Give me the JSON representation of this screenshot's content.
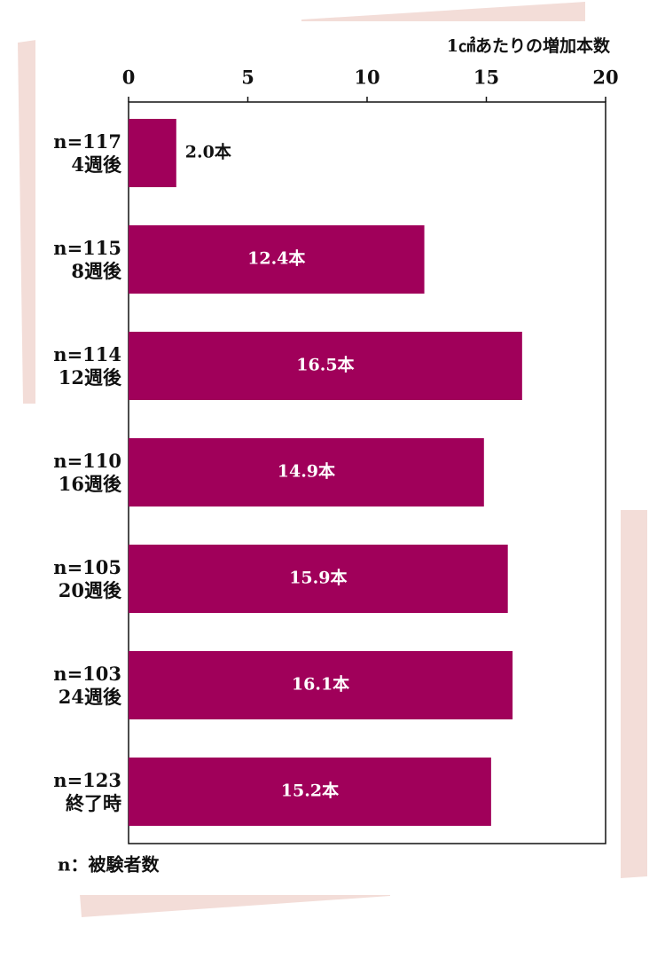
{
  "chart_data": {
    "type": "bar",
    "orientation": "horizontal",
    "x_axis_title": "1㎠あたりの増加本数",
    "categories": [
      [
        "n=117",
        "4週後"
      ],
      [
        "n=115",
        "8週後"
      ],
      [
        "n=114",
        "12週後"
      ],
      [
        "n=110",
        "16週後"
      ],
      [
        "n=105",
        "20週後"
      ],
      [
        "n=103",
        "24週後"
      ],
      [
        "n=123",
        "終了時"
      ]
    ],
    "values": [
      2.0,
      12.4,
      16.5,
      14.9,
      15.9,
      16.1,
      15.2
    ],
    "value_labels": [
      "2.0本",
      "12.4本",
      "16.5本",
      "14.9本",
      "15.9本",
      "16.1本",
      "15.2本"
    ],
    "color": "#a0005a",
    "xlim": [
      0,
      20
    ],
    "xticks": [
      0,
      5,
      10,
      15,
      20
    ],
    "note": "n：被験者数"
  }
}
